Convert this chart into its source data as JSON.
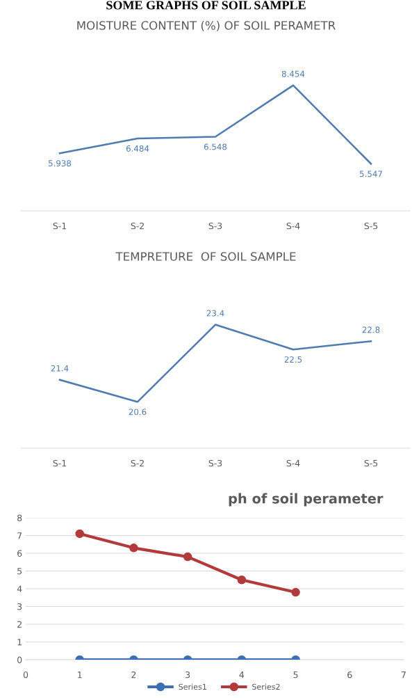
{
  "chart_data": [
    {
      "type": "line",
      "title": "MOISTURE CONTENT (%) OF SOIL PERAMETR",
      "annotations": [
        "SOME GRAPHS OF SOIL SAMPLE"
      ],
      "categories": [
        "S-1",
        "S-2",
        "S-3",
        "S-4",
        "S-5"
      ],
      "values": [
        5.938,
        6.484,
        6.548,
        8.454,
        5.547
      ],
      "color": "#4f7bb0",
      "marker": "none",
      "tick_labels": "x",
      "data_labels": true
    },
    {
      "type": "line",
      "title": "TEMPRETURE  OF SOIL SAMPLE",
      "categories": [
        "S-1",
        "S-2",
        "S-3",
        "S-4",
        "S-5"
      ],
      "values": [
        21.4,
        20.6,
        23.4,
        22.5,
        22.8
      ],
      "color": "#4f7bb0",
      "marker": "none",
      "tick_labels": "x",
      "data_labels": true
    },
    {
      "type": "line",
      "title": "ph of soil perameter",
      "marker": "circle",
      "grid": "y",
      "legend": "bottom",
      "xlim": [
        0,
        7
      ],
      "xticks": [
        0,
        1,
        2,
        3,
        4,
        5,
        6,
        7
      ],
      "ylim": [
        0,
        8
      ],
      "yticks": [
        0,
        1,
        2,
        3,
        4,
        5,
        6,
        7,
        8
      ],
      "series": [
        {
          "name": "Series1",
          "color": "#3d6fb6",
          "x": [
            1,
            2,
            3,
            4,
            5
          ],
          "values": [
            0,
            0,
            0,
            0,
            0
          ]
        },
        {
          "name": "Series2",
          "color": "#b23a3a",
          "x": [
            1,
            2,
            3,
            4,
            5
          ],
          "values": [
            7.1,
            6.3,
            5.8,
            4.5,
            3.8
          ]
        }
      ]
    }
  ]
}
